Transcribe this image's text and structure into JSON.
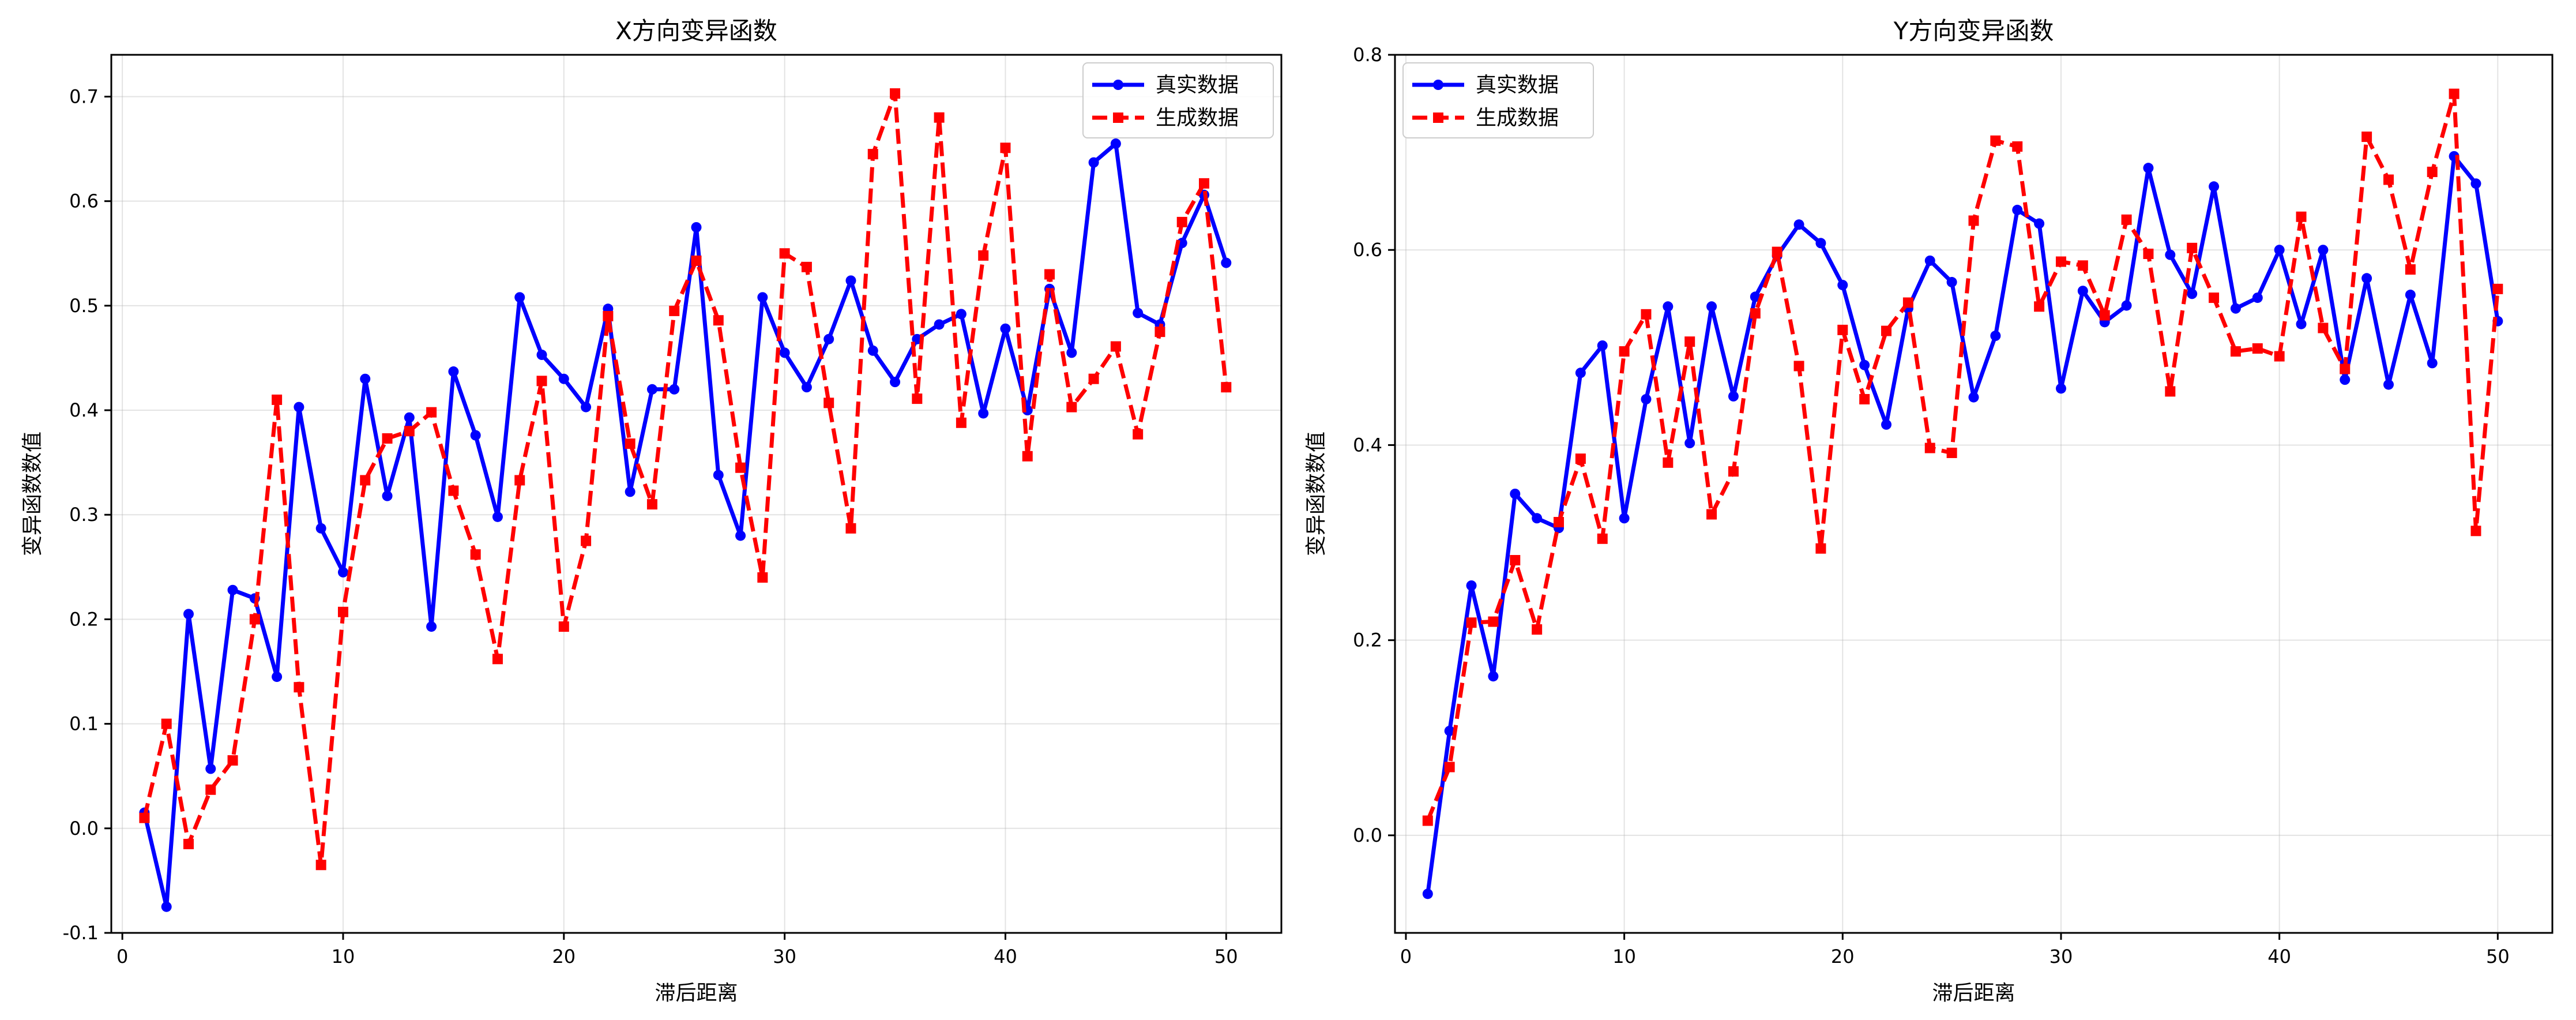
{
  "chart_data": [
    {
      "type": "line",
      "title": "X方向变异函数",
      "xlabel": "滞后距离",
      "ylabel": "变异函数数值",
      "xlim": [
        -0.5,
        52.5
      ],
      "ylim": [
        -0.1,
        0.74
      ],
      "xticks": [
        0,
        10,
        20,
        30,
        40,
        50
      ],
      "yticks": [
        -0.1,
        0.0,
        0.1,
        0.2,
        0.3,
        0.4,
        0.5,
        0.6,
        0.7
      ],
      "grid": true,
      "legend_position": "upper right",
      "x": [
        1,
        2,
        3,
        4,
        5,
        6,
        7,
        8,
        9,
        10,
        11,
        12,
        13,
        14,
        15,
        16,
        17,
        18,
        19,
        20,
        21,
        22,
        23,
        24,
        25,
        26,
        27,
        28,
        29,
        30,
        31,
        32,
        33,
        34,
        35,
        36,
        37,
        38,
        39,
        40,
        41,
        42,
        43,
        44,
        45,
        46,
        47,
        48,
        49,
        50
      ],
      "series": [
        {
          "name": "真实数据",
          "color": "#0000ff",
          "linestyle": "solid",
          "marker": "circle",
          "values": [
            0.015,
            -0.075,
            0.205,
            0.057,
            0.228,
            0.22,
            0.145,
            0.403,
            0.287,
            0.245,
            0.43,
            0.318,
            0.393,
            0.193,
            0.437,
            0.376,
            0.298,
            0.508,
            0.453,
            0.43,
            0.403,
            0.497,
            0.322,
            0.42,
            0.42,
            0.575,
            0.338,
            0.28,
            0.508,
            0.455,
            0.422,
            0.468,
            0.524,
            0.457,
            0.427,
            0.468,
            0.482,
            0.492,
            0.397,
            0.478,
            0.4,
            0.516,
            0.455,
            0.637,
            0.655,
            0.493,
            0.482,
            0.56,
            0.606,
            0.541
          ]
        },
        {
          "name": "生成数据",
          "color": "#ff0000",
          "linestyle": "dashed",
          "marker": "square",
          "values": [
            0.01,
            0.1,
            -0.015,
            0.037,
            0.065,
            0.2,
            0.41,
            0.135,
            -0.035,
            0.207,
            0.333,
            0.373,
            0.38,
            0.398,
            0.323,
            0.262,
            0.162,
            0.333,
            0.428,
            0.193,
            0.275,
            0.49,
            0.368,
            0.31,
            0.495,
            0.543,
            0.486,
            0.345,
            0.24,
            0.55,
            0.537,
            0.407,
            0.287,
            0.645,
            0.703,
            0.411,
            0.68,
            0.388,
            0.548,
            0.651,
            0.356,
            0.53,
            0.403,
            0.43,
            0.461,
            0.377,
            0.475,
            0.58,
            0.617,
            0.422
          ]
        }
      ]
    },
    {
      "type": "line",
      "title": "Y方向变异函数",
      "xlabel": "滞后距离",
      "ylabel": "变异函数数值",
      "xlim": [
        -0.5,
        52.5
      ],
      "ylim": [
        -0.1,
        0.8
      ],
      "xticks": [
        0,
        10,
        20,
        30,
        40,
        50
      ],
      "yticks": [
        0.0,
        0.2,
        0.4,
        0.6,
        0.8
      ],
      "grid": true,
      "legend_position": "upper left",
      "x": [
        1,
        2,
        3,
        4,
        5,
        6,
        7,
        8,
        9,
        10,
        11,
        12,
        13,
        14,
        15,
        16,
        17,
        18,
        19,
        20,
        21,
        22,
        23,
        24,
        25,
        26,
        27,
        28,
        29,
        30,
        31,
        32,
        33,
        34,
        35,
        36,
        37,
        38,
        39,
        40,
        41,
        42,
        43,
        44,
        45,
        46,
        47,
        48,
        49,
        50
      ],
      "series": [
        {
          "name": "真实数据",
          "color": "#0000ff",
          "linestyle": "solid",
          "marker": "circle",
          "values": [
            -0.06,
            0.107,
            0.256,
            0.163,
            0.35,
            0.325,
            0.315,
            0.474,
            0.502,
            0.325,
            0.447,
            0.542,
            0.402,
            0.542,
            0.45,
            0.552,
            0.594,
            0.626,
            0.607,
            0.564,
            0.482,
            0.421,
            0.54,
            0.589,
            0.567,
            0.449,
            0.512,
            0.641,
            0.627,
            0.458,
            0.558,
            0.526,
            0.543,
            0.684,
            0.595,
            0.555,
            0.665,
            0.54,
            0.551,
            0.6,
            0.524,
            0.6,
            0.467,
            0.571,
            0.462,
            0.554,
            0.484,
            0.696,
            0.668,
            0.527
          ]
        },
        {
          "name": "生成数据",
          "color": "#ff0000",
          "linestyle": "dashed",
          "marker": "square",
          "values": [
            0.015,
            0.07,
            0.218,
            0.219,
            0.282,
            0.211,
            0.321,
            0.386,
            0.304,
            0.496,
            0.534,
            0.382,
            0.506,
            0.329,
            0.373,
            0.535,
            0.598,
            0.481,
            0.294,
            0.518,
            0.447,
            0.517,
            0.546,
            0.397,
            0.392,
            0.63,
            0.712,
            0.706,
            0.542,
            0.588,
            0.584,
            0.533,
            0.631,
            0.596,
            0.455,
            0.602,
            0.551,
            0.496,
            0.499,
            0.491,
            0.634,
            0.52,
            0.478,
            0.716,
            0.672,
            0.58,
            0.68,
            0.76,
            0.312,
            0.56
          ]
        }
      ]
    }
  ]
}
